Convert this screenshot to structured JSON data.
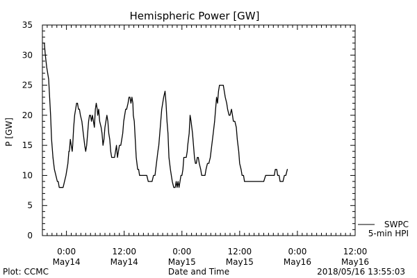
{
  "footer": {
    "left": "Plot: CCMC",
    "center": "Date and Time",
    "right": "2018/05/16 13:55:03"
  },
  "chart_data": {
    "type": "line",
    "title": "Hemispheric Power [GW]",
    "xlabel": "Date and Time",
    "ylabel": "P [GW]",
    "x_unit": "hours since 2018-05-13 00:00",
    "xlim": [
      19,
      84
    ],
    "ylim": [
      0,
      35
    ],
    "yticks": [
      0,
      5,
      10,
      15,
      20,
      25,
      30,
      35
    ],
    "xticks": [
      {
        "x": 24,
        "line1": "0:00",
        "line2": "May14"
      },
      {
        "x": 36,
        "line1": "12:00",
        "line2": "May14"
      },
      {
        "x": 48,
        "line1": "0:00",
        "line2": "May15"
      },
      {
        "x": 60,
        "line1": "12:00",
        "line2": "May15"
      },
      {
        "x": 72,
        "line1": "0:00",
        "line2": "May16"
      },
      {
        "x": 84,
        "line1": "12:00",
        "line2": "May16"
      }
    ],
    "legend": {
      "placement": "bottom-right",
      "entries": [
        {
          "label": "SWPC",
          "color": "#000000"
        },
        {
          "label": "5-min HPI",
          "color": "#000000"
        }
      ]
    },
    "series": [
      {
        "color": "#000000",
        "points": [
          [
            19.0,
            32
          ],
          [
            19.4,
            32
          ],
          [
            19.6,
            30
          ],
          [
            19.9,
            28
          ],
          [
            20.3,
            26
          ],
          [
            20.5,
            23
          ],
          [
            20.7,
            20
          ],
          [
            20.9,
            16
          ],
          [
            21.2,
            13
          ],
          [
            21.5,
            11
          ],
          [
            21.8,
            10
          ],
          [
            22.1,
            9
          ],
          [
            22.3,
            9
          ],
          [
            22.5,
            8
          ],
          [
            22.9,
            8
          ],
          [
            23.3,
            8
          ],
          [
            23.6,
            9
          ],
          [
            23.9,
            10
          ],
          [
            24.3,
            12
          ],
          [
            24.5,
            14
          ],
          [
            24.6,
            14
          ],
          [
            24.8,
            16
          ],
          [
            25.0,
            15
          ],
          [
            25.2,
            14
          ],
          [
            25.3,
            15
          ],
          [
            25.5,
            18
          ],
          [
            25.7,
            20
          ],
          [
            25.9,
            21
          ],
          [
            26.1,
            22
          ],
          [
            26.3,
            22
          ],
          [
            26.5,
            21
          ],
          [
            26.7,
            21
          ],
          [
            26.9,
            20
          ],
          [
            27.2,
            19
          ],
          [
            27.5,
            17
          ],
          [
            27.8,
            15
          ],
          [
            28.0,
            14
          ],
          [
            28.2,
            15
          ],
          [
            28.4,
            17
          ],
          [
            28.6,
            19
          ],
          [
            28.8,
            20
          ],
          [
            29.0,
            20
          ],
          [
            29.2,
            19
          ],
          [
            29.4,
            20
          ],
          [
            29.6,
            19
          ],
          [
            29.8,
            18
          ],
          [
            30.0,
            21
          ],
          [
            30.2,
            22
          ],
          [
            30.4,
            21
          ],
          [
            30.5,
            20
          ],
          [
            30.7,
            21
          ],
          [
            30.9,
            19
          ],
          [
            31.2,
            18
          ],
          [
            31.4,
            17
          ],
          [
            31.6,
            15
          ],
          [
            31.8,
            16
          ],
          [
            32.0,
            18
          ],
          [
            32.2,
            19
          ],
          [
            32.4,
            20
          ],
          [
            32.6,
            19
          ],
          [
            32.8,
            17
          ],
          [
            33.0,
            16
          ],
          [
            33.2,
            14
          ],
          [
            33.4,
            13
          ],
          [
            33.7,
            13
          ],
          [
            34.0,
            13
          ],
          [
            34.2,
            14
          ],
          [
            34.4,
            15
          ],
          [
            34.6,
            13
          ],
          [
            34.8,
            14
          ],
          [
            35.0,
            15
          ],
          [
            35.3,
            15
          ],
          [
            35.5,
            16
          ],
          [
            35.7,
            17
          ],
          [
            35.9,
            19
          ],
          [
            36.1,
            20
          ],
          [
            36.3,
            21
          ],
          [
            36.5,
            21
          ],
          [
            36.8,
            22
          ],
          [
            37.0,
            23
          ],
          [
            37.2,
            23
          ],
          [
            37.4,
            22
          ],
          [
            37.6,
            23
          ],
          [
            37.8,
            22
          ],
          [
            37.9,
            20
          ],
          [
            38.1,
            19
          ],
          [
            38.3,
            16
          ],
          [
            38.5,
            13
          ],
          [
            38.8,
            11
          ],
          [
            39.0,
            11
          ],
          [
            39.2,
            10
          ],
          [
            39.6,
            10
          ],
          [
            40.0,
            10
          ],
          [
            40.4,
            10
          ],
          [
            40.7,
            10
          ],
          [
            41.0,
            9
          ],
          [
            41.4,
            9
          ],
          [
            41.8,
            9
          ],
          [
            42.1,
            10
          ],
          [
            42.4,
            10
          ],
          [
            42.7,
            12
          ],
          [
            43.0,
            14
          ],
          [
            43.2,
            15
          ],
          [
            43.4,
            17
          ],
          [
            43.6,
            19
          ],
          [
            43.8,
            21
          ],
          [
            44.0,
            22
          ],
          [
            44.2,
            23
          ],
          [
            44.5,
            24
          ],
          [
            44.7,
            22
          ],
          [
            44.9,
            19
          ],
          [
            45.1,
            17
          ],
          [
            45.3,
            13
          ],
          [
            45.6,
            11
          ],
          [
            45.8,
            10
          ],
          [
            46.0,
            9
          ],
          [
            46.3,
            8
          ],
          [
            46.6,
            8
          ],
          [
            46.8,
            9
          ],
          [
            47.0,
            8
          ],
          [
            47.2,
            9
          ],
          [
            47.4,
            8
          ],
          [
            47.6,
            9
          ],
          [
            47.8,
            10
          ],
          [
            48.0,
            10
          ],
          [
            48.2,
            11
          ],
          [
            48.4,
            13
          ],
          [
            48.6,
            13
          ],
          [
            48.9,
            13
          ],
          [
            49.1,
            14
          ],
          [
            49.2,
            15
          ],
          [
            49.5,
            17
          ],
          [
            49.7,
            20
          ],
          [
            49.9,
            19
          ],
          [
            50.2,
            17
          ],
          [
            50.4,
            15
          ],
          [
            50.6,
            13
          ],
          [
            50.8,
            12
          ],
          [
            51.0,
            12
          ],
          [
            51.2,
            13
          ],
          [
            51.4,
            13
          ],
          [
            51.6,
            12
          ],
          [
            51.9,
            11
          ],
          [
            52.1,
            10
          ],
          [
            52.5,
            10
          ],
          [
            52.8,
            10
          ],
          [
            53.0,
            11
          ],
          [
            53.3,
            12
          ],
          [
            53.6,
            12
          ],
          [
            53.9,
            13
          ],
          [
            54.2,
            15
          ],
          [
            54.5,
            17
          ],
          [
            54.8,
            19
          ],
          [
            55.0,
            21
          ],
          [
            55.2,
            23
          ],
          [
            55.4,
            22
          ],
          [
            55.6,
            24
          ],
          [
            55.8,
            25
          ],
          [
            56.0,
            25
          ],
          [
            56.3,
            25
          ],
          [
            56.6,
            25
          ],
          [
            56.8,
            24
          ],
          [
            57.0,
            23
          ],
          [
            57.3,
            22
          ],
          [
            57.5,
            21
          ],
          [
            57.8,
            20
          ],
          [
            58.0,
            20
          ],
          [
            58.3,
            21
          ],
          [
            58.5,
            20
          ],
          [
            58.7,
            19
          ],
          [
            59.0,
            19
          ],
          [
            59.3,
            18
          ],
          [
            59.5,
            16
          ],
          [
            59.8,
            14
          ],
          [
            60.0,
            12
          ],
          [
            60.3,
            11
          ],
          [
            60.5,
            10
          ],
          [
            60.8,
            10
          ],
          [
            61.0,
            9
          ],
          [
            62.0,
            9
          ],
          [
            63.0,
            9
          ],
          [
            64.0,
            9
          ],
          [
            65.0,
            9
          ],
          [
            65.4,
            10
          ],
          [
            66.0,
            10
          ],
          [
            66.6,
            10
          ],
          [
            67.2,
            10
          ],
          [
            67.4,
            11
          ],
          [
            67.7,
            11
          ],
          [
            67.9,
            10
          ],
          [
            68.2,
            10
          ],
          [
            68.4,
            9
          ],
          [
            68.8,
            9
          ],
          [
            69.0,
            9
          ],
          [
            69.3,
            10
          ],
          [
            69.6,
            10
          ],
          [
            69.9,
            11
          ],
          [
            70.0,
            11
          ]
        ]
      }
    ]
  }
}
